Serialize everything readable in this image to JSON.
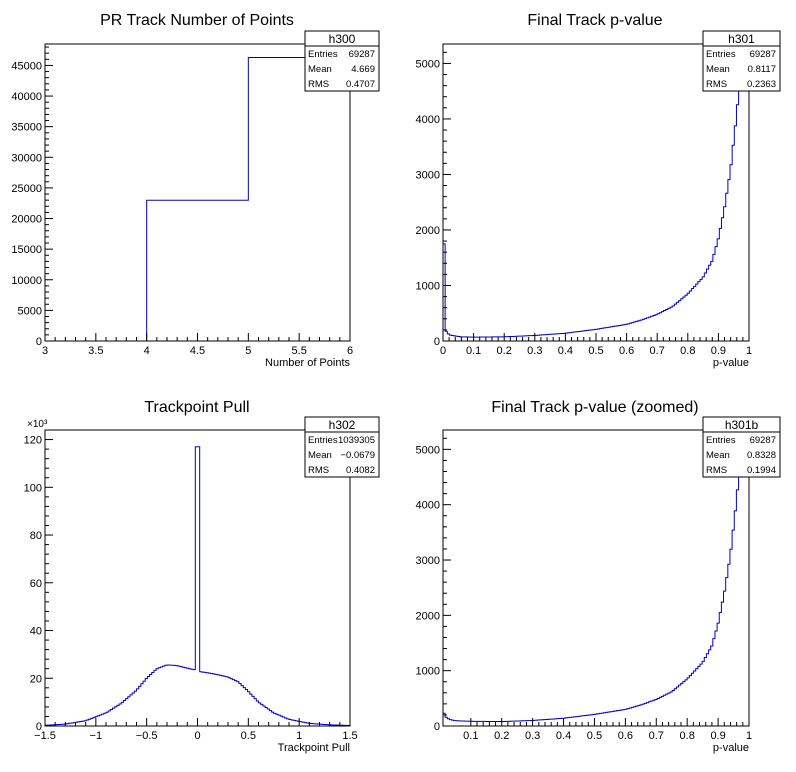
{
  "colors": {
    "line": "#0000cc",
    "axis": "#000000",
    "background": "#ffffff"
  },
  "chart_data": [
    {
      "type": "histogram",
      "title": "PR Track Number of Points",
      "xlabel": "Number of Points",
      "ylabel": "",
      "exponent": "",
      "xlim": [
        3,
        6
      ],
      "ylim": [
        0,
        48500
      ],
      "xticks": [
        3,
        3.5,
        4,
        4.5,
        5,
        5.5,
        6
      ],
      "yticks": [
        0,
        5000,
        10000,
        15000,
        20000,
        25000,
        30000,
        35000,
        40000,
        45000
      ],
      "bins": [
        [
          3,
          4,
          0
        ],
        [
          4,
          5,
          22990
        ],
        [
          5,
          6,
          46297
        ]
      ],
      "stats": {
        "name": "h300",
        "rows": [
          [
            "Entries",
            "69287"
          ],
          [
            "Mean",
            "4.669"
          ],
          [
            "RMS",
            "0.4707"
          ]
        ]
      }
    },
    {
      "type": "histogram",
      "title": "Final Track p-value",
      "xlabel": "p-value",
      "ylabel": "",
      "exponent": "",
      "xlim": [
        0,
        1
      ],
      "ylim": [
        0,
        5350
      ],
      "xticks": [
        0,
        0.1,
        0.2,
        0.3,
        0.4,
        0.5,
        0.6,
        0.7,
        0.8,
        0.9,
        1
      ],
      "yticks": [
        0,
        1000,
        2000,
        3000,
        4000,
        5000
      ],
      "points": [
        [
          0,
          1750
        ],
        [
          0.01,
          180
        ],
        [
          0.02,
          110
        ],
        [
          0.04,
          90
        ],
        [
          0.06,
          75
        ],
        [
          0.1,
          70
        ],
        [
          0.2,
          75
        ],
        [
          0.3,
          100
        ],
        [
          0.4,
          140
        ],
        [
          0.5,
          210
        ],
        [
          0.6,
          300
        ],
        [
          0.65,
          380
        ],
        [
          0.7,
          480
        ],
        [
          0.75,
          620
        ],
        [
          0.8,
          850
        ],
        [
          0.85,
          1150
        ],
        [
          0.88,
          1450
        ],
        [
          0.9,
          1850
        ],
        [
          0.92,
          2400
        ],
        [
          0.94,
          3100
        ],
        [
          0.96,
          4100
        ],
        [
          0.98,
          5350
        ]
      ],
      "stats": {
        "name": "h301",
        "rows": [
          [
            "Entries",
            "69287"
          ],
          [
            "Mean",
            "0.8117"
          ],
          [
            "RMS",
            "0.2363"
          ]
        ]
      }
    },
    {
      "type": "histogram",
      "title": "Trackpoint Pull",
      "xlabel": "Trackpoint Pull",
      "ylabel": "",
      "exponent": "×10³",
      "xlim": [
        -1.5,
        1.5
      ],
      "ylim": [
        0,
        124
      ],
      "xticks": [
        -1.5,
        -1,
        -0.5,
        0,
        0.5,
        1,
        1.5
      ],
      "xtick_labels": [
        "−1.5",
        "−1",
        "−0.5",
        "0",
        "0.5",
        "1",
        "1.5"
      ],
      "yticks": [
        0,
        20,
        40,
        60,
        80,
        100,
        120
      ],
      "points": [
        [
          -1.5,
          0.3
        ],
        [
          -1.3,
          0.8
        ],
        [
          -1.1,
          2.2
        ],
        [
          -0.9,
          5.5
        ],
        [
          -0.75,
          9.5
        ],
        [
          -0.6,
          15
        ],
        [
          -0.5,
          20
        ],
        [
          -0.4,
          24
        ],
        [
          -0.3,
          25.6
        ],
        [
          -0.2,
          25.3
        ],
        [
          -0.1,
          24.2
        ],
        [
          -0.02,
          23.5
        ],
        [
          0.02,
          22.8
        ],
        [
          0.1,
          22.3
        ],
        [
          0.2,
          21.5
        ],
        [
          0.3,
          20.5
        ],
        [
          0.4,
          18.5
        ],
        [
          0.5,
          14.5
        ],
        [
          0.6,
          10
        ],
        [
          0.75,
          5.5
        ],
        [
          0.9,
          2.8
        ],
        [
          1.1,
          1.1
        ],
        [
          1.3,
          0.5
        ],
        [
          1.5,
          0.2
        ]
      ],
      "spike": {
        "x": [
          -0.02,
          0.02
        ],
        "value": 117
      },
      "stats": {
        "name": "h302",
        "rows": [
          [
            "Entries",
            "1039305"
          ],
          [
            "Mean",
            "−0.0679"
          ],
          [
            "RMS",
            "0.4082"
          ]
        ]
      }
    },
    {
      "type": "histogram",
      "title": "Final Track p-value (zoomed)",
      "xlabel": "p-value",
      "ylabel": "",
      "exponent": "",
      "xlim": [
        0.01,
        1
      ],
      "ylim": [
        0,
        5350
      ],
      "xticks": [
        0.1,
        0.2,
        0.3,
        0.4,
        0.5,
        0.6,
        0.7,
        0.8,
        0.9,
        1
      ],
      "yticks": [
        0,
        1000,
        2000,
        3000,
        4000,
        5000
      ],
      "points": [
        [
          0.01,
          230
        ],
        [
          0.02,
          160
        ],
        [
          0.03,
          120
        ],
        [
          0.05,
          95
        ],
        [
          0.1,
          85
        ],
        [
          0.2,
          80
        ],
        [
          0.3,
          100
        ],
        [
          0.4,
          140
        ],
        [
          0.5,
          210
        ],
        [
          0.6,
          300
        ],
        [
          0.65,
          380
        ],
        [
          0.7,
          480
        ],
        [
          0.75,
          620
        ],
        [
          0.8,
          850
        ],
        [
          0.85,
          1150
        ],
        [
          0.88,
          1450
        ],
        [
          0.9,
          1850
        ],
        [
          0.92,
          2400
        ],
        [
          0.94,
          3100
        ],
        [
          0.96,
          4100
        ],
        [
          0.98,
          5350
        ]
      ],
      "stats": {
        "name": "h301b",
        "rows": [
          [
            "Entries",
            "69287"
          ],
          [
            "Mean",
            "0.8328"
          ],
          [
            "RMS",
            "0.1994"
          ]
        ]
      }
    }
  ]
}
